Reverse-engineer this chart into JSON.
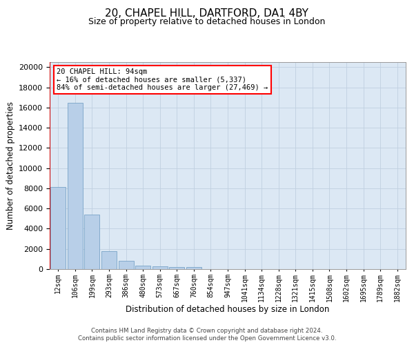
{
  "title_line1": "20, CHAPEL HILL, DARTFORD, DA1 4BY",
  "title_line2": "Size of property relative to detached houses in London",
  "xlabel": "Distribution of detached houses by size in London",
  "ylabel": "Number of detached properties",
  "bar_labels": [
    "12sqm",
    "106sqm",
    "199sqm",
    "293sqm",
    "386sqm",
    "480sqm",
    "573sqm",
    "667sqm",
    "760sqm",
    "854sqm",
    "947sqm",
    "1041sqm",
    "1134sqm",
    "1228sqm",
    "1321sqm",
    "1415sqm",
    "1508sqm",
    "1602sqm",
    "1695sqm",
    "1789sqm",
    "1882sqm"
  ],
  "bar_values": [
    8100,
    16500,
    5400,
    1750,
    800,
    350,
    280,
    220,
    200,
    0,
    0,
    0,
    0,
    0,
    0,
    0,
    0,
    0,
    0,
    0,
    0
  ],
  "bar_color": "#b8cfe8",
  "bar_edge_color": "#6898c0",
  "annotation_text": "20 CHAPEL HILL: 94sqm\n← 16% of detached houses are smaller (5,337)\n84% of semi-detached houses are larger (27,469) →",
  "vline_color": "#cc0000",
  "ylim_max": 20500,
  "yticks": [
    0,
    2000,
    4000,
    6000,
    8000,
    10000,
    12000,
    14000,
    16000,
    18000,
    20000
  ],
  "grid_color": "#c0d0e0",
  "background_color": "#dce8f4",
  "footer_line1": "Contains HM Land Registry data © Crown copyright and database right 2024.",
  "footer_line2": "Contains public sector information licensed under the Open Government Licence v3.0."
}
